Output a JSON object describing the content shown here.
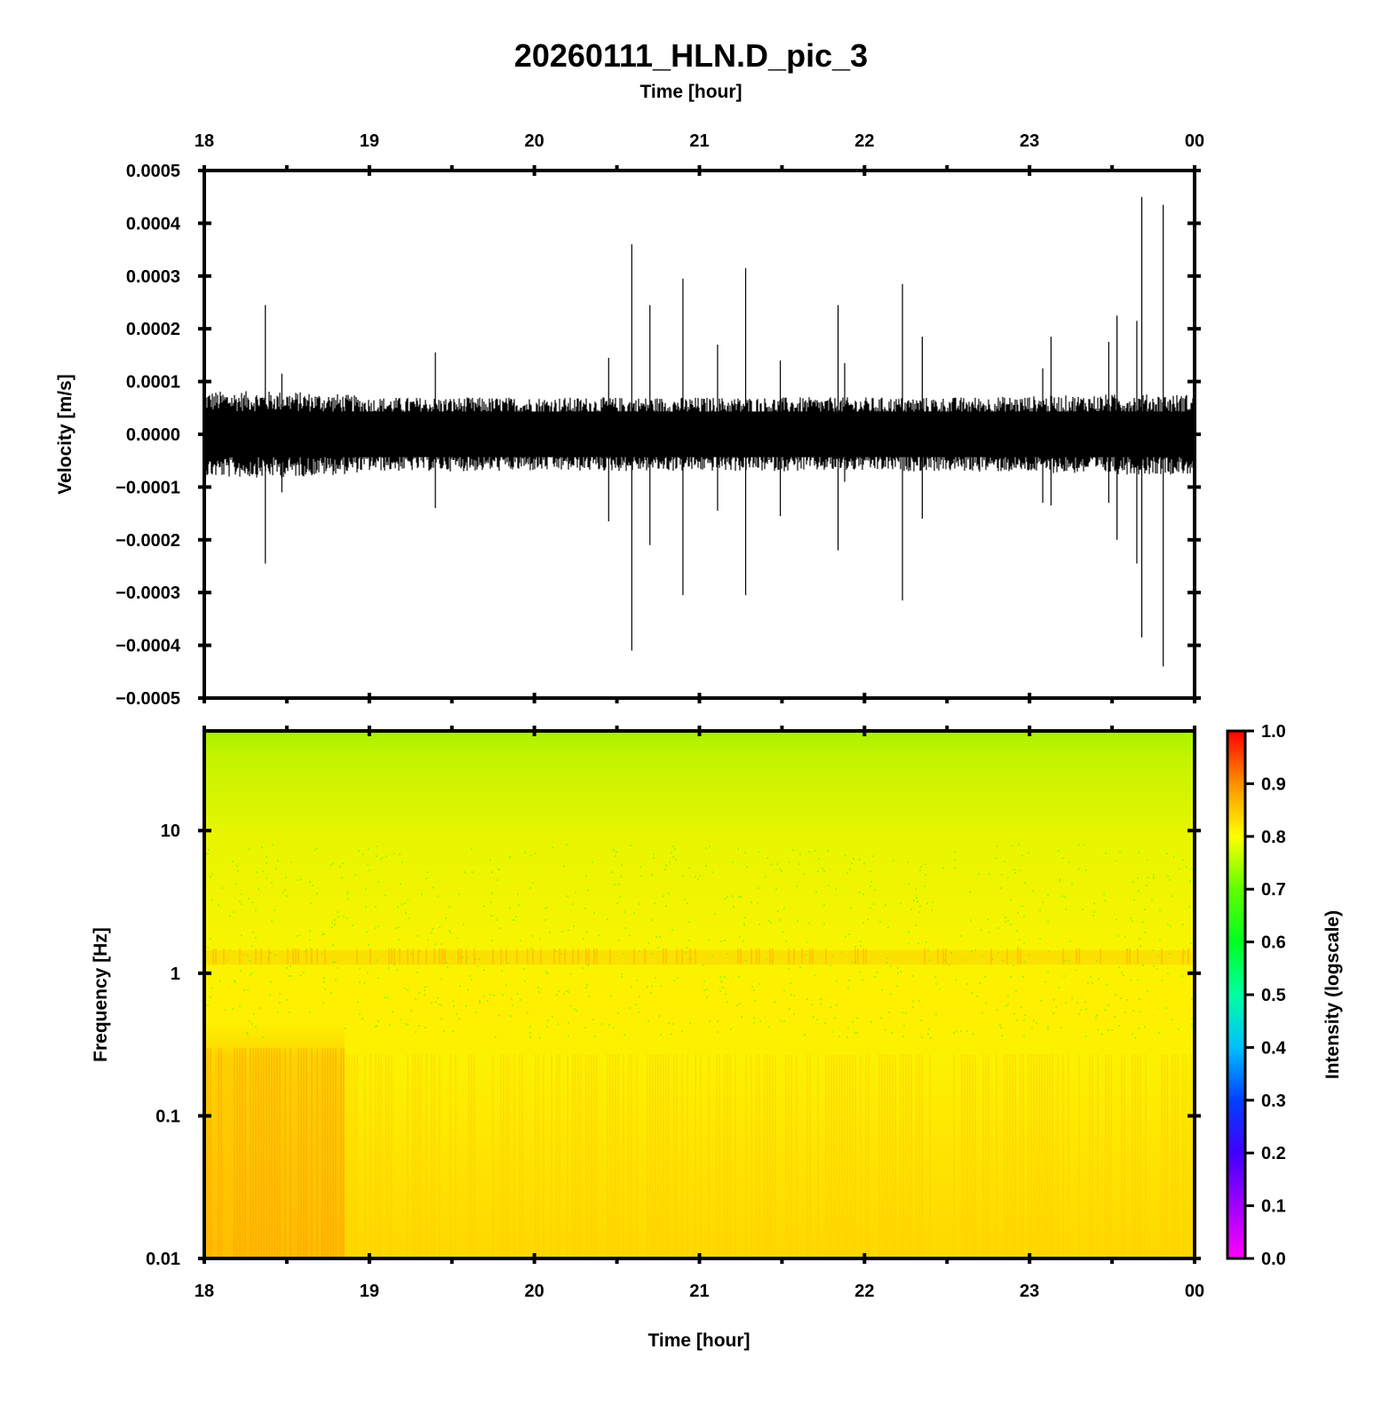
{
  "title": "20260111_HLN.D_pic_3",
  "colors": {
    "waveform": "#000000",
    "frame": "#000000",
    "spectrogram_top": "#a8f000",
    "spectrogram_mid": "#f7f000",
    "spectrogram_low": "#ffd400",
    "background": "#ffffff"
  },
  "chart_data": [
    {
      "type": "line",
      "panel": "waveform",
      "title": "20260111_HLN.D_pic_3",
      "xlabel": "Time [hour]",
      "ylabel": "Velocity [m/s]",
      "x_ticks": [
        "18",
        "19",
        "20",
        "21",
        "22",
        "23",
        "00"
      ],
      "x_range": [
        18,
        24
      ],
      "y_ticks": [
        "0.0005",
        "0.0004",
        "0.0003",
        "0.0002",
        "0.0001",
        "0.0000",
        "−0.0001",
        "−0.0002",
        "−0.0003",
        "−0.0004",
        "−0.0005"
      ],
      "ylim": [
        -0.0005,
        0.0005
      ],
      "background_noise_amplitude": {
        "x": [
          18.0,
          18.5,
          18.85,
          19.0,
          19.5,
          20.0,
          20.5,
          21.0,
          21.5,
          22.0,
          22.5,
          23.0,
          23.5,
          24.0
        ],
        "value": [
          7e-05,
          7e-05,
          6.5e-05,
          6e-05,
          6e-05,
          6e-05,
          6e-05,
          6e-05,
          6e-05,
          6e-05,
          6e-05,
          6.2e-05,
          6.5e-05,
          6.5e-05
        ]
      },
      "spikes": [
        {
          "x": 18.37,
          "max": 0.000245,
          "min": -0.000245
        },
        {
          "x": 18.47,
          "max": 0.000115,
          "min": -0.00011
        },
        {
          "x": 19.4,
          "max": 0.000155,
          "min": -0.00014
        },
        {
          "x": 20.45,
          "max": 0.000145,
          "min": -0.000165
        },
        {
          "x": 20.59,
          "max": 0.00036,
          "min": -0.00041
        },
        {
          "x": 20.7,
          "max": 0.000245,
          "min": -0.00021
        },
        {
          "x": 20.9,
          "max": 0.000295,
          "min": -0.000305
        },
        {
          "x": 21.11,
          "max": 0.00017,
          "min": -0.000145
        },
        {
          "x": 21.28,
          "max": 0.000315,
          "min": -0.000305
        },
        {
          "x": 21.49,
          "max": 0.00014,
          "min": -0.000155
        },
        {
          "x": 21.84,
          "max": 0.000245,
          "min": -0.00022
        },
        {
          "x": 21.88,
          "max": 0.000135,
          "min": -9e-05
        },
        {
          "x": 22.23,
          "max": 0.000285,
          "min": -0.000315
        },
        {
          "x": 22.35,
          "max": 0.000185,
          "min": -0.00016
        },
        {
          "x": 23.08,
          "max": 0.000125,
          "min": -0.00013
        },
        {
          "x": 23.13,
          "max": 0.000185,
          "min": -0.000135
        },
        {
          "x": 23.48,
          "max": 0.000175,
          "min": -0.00013
        },
        {
          "x": 23.53,
          "max": 0.000225,
          "min": -0.0002
        },
        {
          "x": 23.65,
          "max": 0.000215,
          "min": -0.000245
        },
        {
          "x": 23.68,
          "max": 0.00045,
          "min": -0.000385
        },
        {
          "x": 23.81,
          "max": 0.000435,
          "min": -0.00044
        }
      ]
    },
    {
      "type": "heatmap",
      "panel": "spectrogram",
      "xlabel": "Time [hour]",
      "ylabel": "Frequency [Hz]",
      "x_ticks": [
        "18",
        "19",
        "20",
        "21",
        "22",
        "23",
        "00"
      ],
      "x_range": [
        18,
        24
      ],
      "y_scale": "log",
      "y_ticks": [
        "10",
        "1",
        "0.1",
        "0.01"
      ],
      "ylim": [
        0.01,
        50
      ],
      "colorbar": {
        "label": "Intensity (logscale)",
        "ticks": [
          "1.0",
          "0.9",
          "0.8",
          "0.7",
          "0.6",
          "0.5",
          "0.4",
          "0.3",
          "0.2",
          "0.1",
          "0.0"
        ],
        "range": [
          0,
          1
        ],
        "colors": [
          "#ff00ff",
          "#8000ff",
          "#0000ff",
          "#0080ff",
          "#00ffff",
          "#00ff80",
          "#00ff00",
          "#80ff00",
          "#ffff00",
          "#ffc000",
          "#ff8000",
          "#ff0000"
        ]
      },
      "intensity_profile": [
        {
          "freq": 50,
          "value": 0.72
        },
        {
          "freq": 20,
          "value": 0.76
        },
        {
          "freq": 5,
          "value": 0.79
        },
        {
          "freq": 1.3,
          "value": 0.83
        },
        {
          "freq": 0.5,
          "value": 0.8
        },
        {
          "freq": 0.2,
          "value": 0.84
        },
        {
          "freq": 0.05,
          "value": 0.85
        },
        {
          "freq": 0.01,
          "value": 0.86
        }
      ],
      "x_range_higher_intensity": [
        18.0,
        18.85
      ]
    }
  ]
}
